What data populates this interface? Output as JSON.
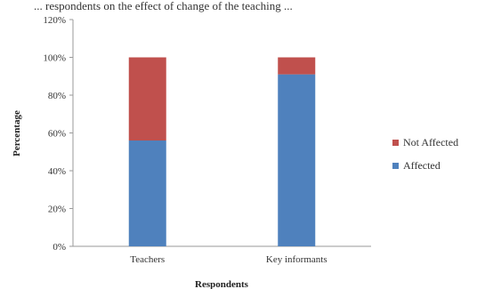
{
  "header_fragment": "... respondents on the effect of change of the teaching ...",
  "chart_data": {
    "type": "bar",
    "stacked": true,
    "categories": [
      "Teachers",
      "Key informants"
    ],
    "series": [
      {
        "name": "Affected",
        "values": [
          56,
          91
        ],
        "color": "#4f81bd"
      },
      {
        "name": "Not Affected",
        "values": [
          44,
          9
        ],
        "color": "#c0504d"
      }
    ],
    "ytick_labels": [
      "0%",
      "20%",
      "40%",
      "60%",
      "80%",
      "100%",
      "120%"
    ],
    "ytick_values": [
      0,
      20,
      40,
      60,
      80,
      100,
      120
    ],
    "ylim": [
      0,
      120
    ],
    "xlabel": "Respondents",
    "ylabel": "Percentage",
    "legend_position": "right",
    "legend_order": [
      "Not Affected",
      "Affected"
    ],
    "grid": false
  }
}
